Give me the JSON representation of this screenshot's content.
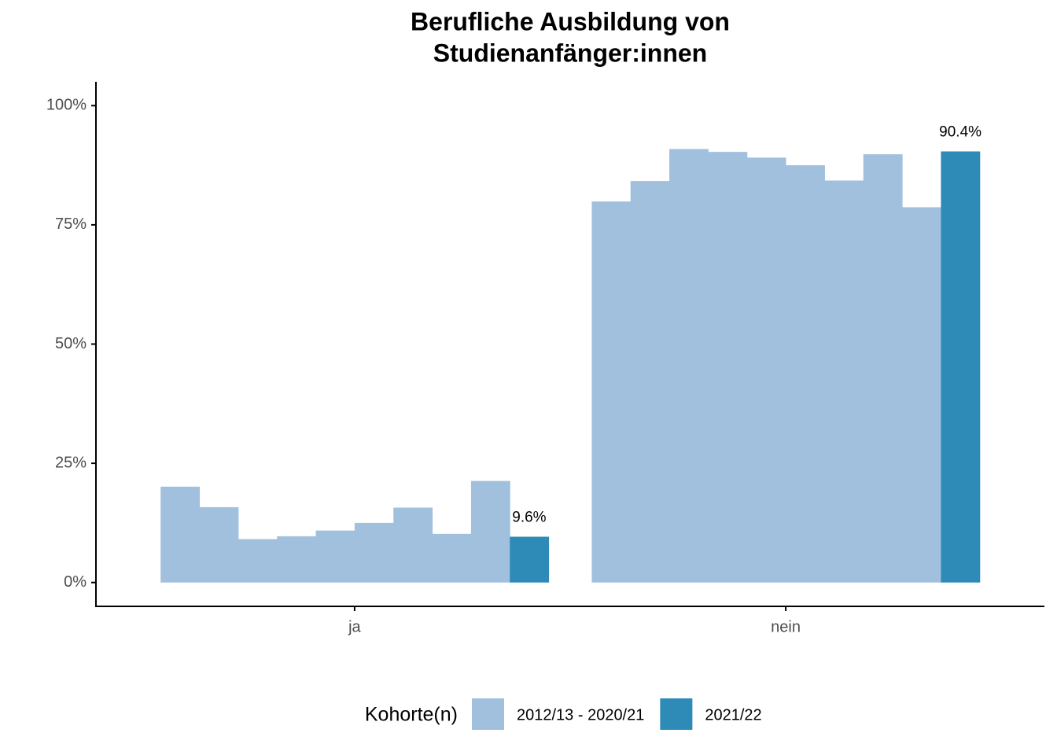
{
  "chart_data": {
    "type": "bar",
    "title": [
      "Berufliche Ausbildung von",
      "Studienanfänger:innen"
    ],
    "categories": [
      "ja",
      "nein"
    ],
    "series": [
      {
        "name": "2012/13 - 2020/21",
        "color": "#a1c0dd",
        "values": [
          [
            20.1,
            15.8,
            9.1,
            9.7,
            10.9,
            12.5,
            15.7,
            10.2,
            21.3
          ],
          [
            79.9,
            84.2,
            90.9,
            90.3,
            89.1,
            87.5,
            84.3,
            89.8,
            78.7
          ]
        ]
      },
      {
        "name": "2021/22",
        "color": "#2e8ab7",
        "values": [
          9.6,
          90.4
        ],
        "value_labels": [
          "9.6%",
          "90.4%"
        ]
      }
    ],
    "ylim": [
      -5,
      105
    ],
    "yticks": [
      {
        "value": 0,
        "label": "0%"
      },
      {
        "value": 25,
        "label": "25%"
      },
      {
        "value": 50,
        "label": "50%"
      },
      {
        "value": 75,
        "label": "75%"
      },
      {
        "value": 100,
        "label": "100%"
      }
    ],
    "legend_title": "Kohorte(n)",
    "legend_position": "bottom",
    "grid": false
  }
}
